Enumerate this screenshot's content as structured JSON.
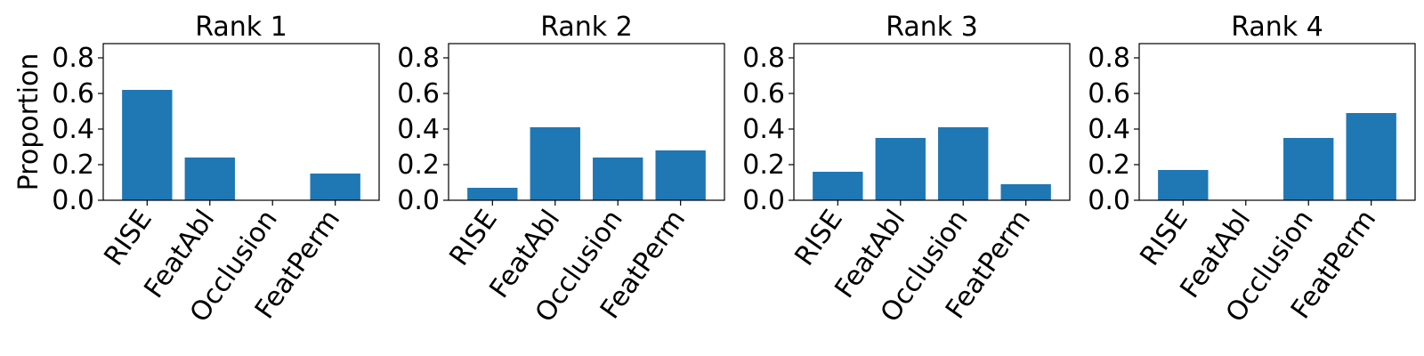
{
  "chart_data": [
    {
      "type": "bar",
      "title": "Rank 1",
      "ylabel": "Proportion",
      "categories": [
        "RISE",
        "FeatAbl",
        "Occlusion",
        "FeatPerm"
      ],
      "values": [
        0.62,
        0.24,
        0.0,
        0.15
      ],
      "ylim": [
        0,
        0.88
      ],
      "yticks": [
        "0.0",
        "0.2",
        "0.4",
        "0.6",
        "0.8"
      ],
      "bar_color": "#1f77b4",
      "grid": false
    },
    {
      "type": "bar",
      "title": "Rank 2",
      "ylabel": "",
      "categories": [
        "RISE",
        "FeatAbl",
        "Occlusion",
        "FeatPerm"
      ],
      "values": [
        0.07,
        0.41,
        0.24,
        0.28
      ],
      "ylim": [
        0,
        0.88
      ],
      "yticks": [
        "0.0",
        "0.2",
        "0.4",
        "0.6",
        "0.8"
      ],
      "bar_color": "#1f77b4",
      "grid": false
    },
    {
      "type": "bar",
      "title": "Rank 3",
      "ylabel": "",
      "categories": [
        "RISE",
        "FeatAbl",
        "Occlusion",
        "FeatPerm"
      ],
      "values": [
        0.16,
        0.35,
        0.41,
        0.09
      ],
      "ylim": [
        0,
        0.88
      ],
      "yticks": [
        "0.0",
        "0.2",
        "0.4",
        "0.6",
        "0.8"
      ],
      "bar_color": "#1f77b4",
      "grid": false
    },
    {
      "type": "bar",
      "title": "Rank 4",
      "ylabel": "",
      "categories": [
        "RISE",
        "FeatAbl",
        "Occlusion",
        "FeatPerm"
      ],
      "values": [
        0.17,
        0.0,
        0.35,
        0.49
      ],
      "ylim": [
        0,
        0.88
      ],
      "yticks": [
        "0.0",
        "0.2",
        "0.4",
        "0.6",
        "0.8"
      ],
      "bar_color": "#1f77b4",
      "grid": false
    }
  ]
}
